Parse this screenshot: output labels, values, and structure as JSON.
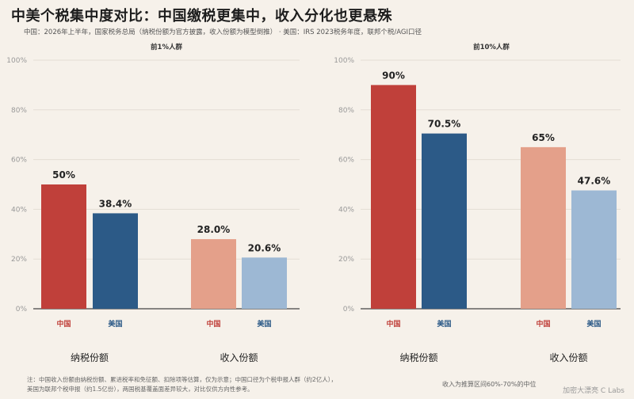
{
  "title": "中美个税集中度对比：中国缴税更集中，收入分化也更悬殊",
  "subtitle": "中国：2026年上半年，国家税务总局（纳税份额为官方披露，收入份额为模型倒推）  · 美国：IRS 2023税务年度，联邦个税/AGI口径",
  "footnote_lines": [
    "注：中国收入份额由纳税份额、累进税率和免征额、扣除项等估算，仅为示意；中国口径为个税申报人群（约2亿人），",
    "美国为联邦个税申报（约1.5亿份），两国税基覆盖面差异较大，对比仅供方向性参考。"
  ],
  "note_right": "收入为推算区间60%-70%的中位",
  "watermark": "加密大漂亮 C Labs",
  "colors": {
    "china_dark": "#c0403a",
    "us_dark": "#2c5a87",
    "china_light": "#e4a08a",
    "us_light": "#9db8d4",
    "china_label": "#c0403a",
    "us_label": "#2c5a87"
  },
  "chart_data": [
    {
      "type": "bar",
      "title": "前1%人群",
      "ylim": [
        0,
        100
      ],
      "yticks": [
        "0%",
        "20%",
        "40%",
        "60%",
        "80%",
        "100%"
      ],
      "groups": [
        "纳税份额",
        "收入份额"
      ],
      "series": [
        {
          "name": "中国",
          "values": [
            50,
            28.0
          ],
          "labels": [
            "50%",
            "28.0%"
          ]
        },
        {
          "name": "美国",
          "values": [
            38.4,
            20.6
          ],
          "labels": [
            "38.4%",
            "20.6%"
          ]
        }
      ]
    },
    {
      "type": "bar",
      "title": "前10%人群",
      "ylim": [
        0,
        100
      ],
      "yticks": [
        "0%",
        "20%",
        "40%",
        "60%",
        "80%",
        "100%"
      ],
      "groups": [
        "纳税份额",
        "收入份额"
      ],
      "series": [
        {
          "name": "中国",
          "values": [
            90,
            65
          ],
          "labels": [
            "90%",
            "65%"
          ]
        },
        {
          "name": "美国",
          "values": [
            70.5,
            47.6
          ],
          "labels": [
            "70.5%",
            "47.6%"
          ]
        }
      ]
    }
  ]
}
